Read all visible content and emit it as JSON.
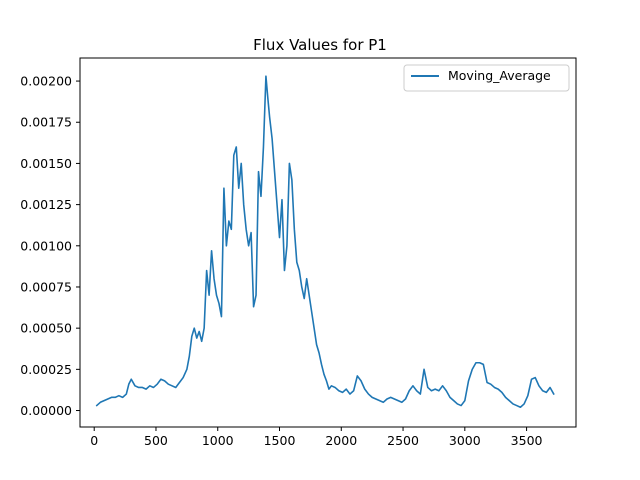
{
  "chart_data": {
    "type": "line",
    "title": "Flux Values for P1",
    "xlabel": "",
    "ylabel": "",
    "xlim": [
      -115,
      3900
    ],
    "ylim": [
      -0.0001,
      0.00214
    ],
    "xticks": [
      0,
      500,
      1000,
      1500,
      2000,
      2500,
      3000,
      3500
    ],
    "xtick_labels": [
      "0",
      "500",
      "1000",
      "1500",
      "2000",
      "2500",
      "3000",
      "3500"
    ],
    "yticks": [
      0.0,
      0.00025,
      0.0005,
      0.00075,
      0.001,
      0.00125,
      0.0015,
      0.00175,
      0.002
    ],
    "ytick_labels": [
      "0.00000",
      "0.00025",
      "0.00050",
      "0.00075",
      "0.00100",
      "0.00125",
      "0.00150",
      "0.00175",
      "0.00200"
    ],
    "grid": false,
    "legend_position": "top-right",
    "series": [
      {
        "name": "Moving_Average",
        "color": "#1f77b4",
        "x": [
          20,
          50,
          80,
          110,
          140,
          170,
          200,
          230,
          260,
          280,
          300,
          330,
          360,
          390,
          420,
          450,
          480,
          510,
          540,
          570,
          600,
          630,
          660,
          690,
          720,
          750,
          770,
          790,
          810,
          830,
          850,
          870,
          890,
          910,
          930,
          950,
          970,
          990,
          1010,
          1030,
          1050,
          1070,
          1090,
          1110,
          1130,
          1150,
          1170,
          1190,
          1210,
          1230,
          1250,
          1270,
          1290,
          1310,
          1330,
          1350,
          1370,
          1390,
          1405,
          1420,
          1440,
          1460,
          1480,
          1500,
          1520,
          1540,
          1560,
          1580,
          1600,
          1620,
          1640,
          1660,
          1680,
          1700,
          1720,
          1740,
          1760,
          1780,
          1800,
          1820,
          1840,
          1860,
          1880,
          1900,
          1920,
          1950,
          1980,
          2010,
          2040,
          2070,
          2100,
          2130,
          2160,
          2190,
          2220,
          2250,
          2280,
          2310,
          2340,
          2370,
          2400,
          2430,
          2460,
          2490,
          2520,
          2550,
          2580,
          2610,
          2640,
          2670,
          2700,
          2730,
          2760,
          2790,
          2820,
          2850,
          2880,
          2910,
          2940,
          2970,
          3000,
          3030,
          3060,
          3090,
          3120,
          3150,
          3180,
          3210,
          3240,
          3270,
          3300,
          3330,
          3360,
          3390,
          3420,
          3450,
          3480,
          3510,
          3540,
          3570,
          3600,
          3630,
          3660,
          3690,
          3720
        ],
        "values": [
          3e-05,
          5e-05,
          6e-05,
          7e-05,
          8e-05,
          8e-05,
          9e-05,
          8e-05,
          0.0001,
          0.00016,
          0.00019,
          0.00015,
          0.00014,
          0.00014,
          0.00013,
          0.00015,
          0.00014,
          0.00016,
          0.00019,
          0.00018,
          0.00016,
          0.00015,
          0.00014,
          0.00017,
          0.0002,
          0.00025,
          0.00033,
          0.00045,
          0.0005,
          0.00044,
          0.00048,
          0.00042,
          0.0005,
          0.00085,
          0.0007,
          0.00097,
          0.0008,
          0.0007,
          0.00065,
          0.00057,
          0.00135,
          0.001,
          0.00115,
          0.0011,
          0.00155,
          0.0016,
          0.00135,
          0.0015,
          0.00125,
          0.0011,
          0.001,
          0.00108,
          0.00063,
          0.0007,
          0.00145,
          0.0013,
          0.0016,
          0.00203,
          0.0019,
          0.00178,
          0.00165,
          0.00145,
          0.00125,
          0.00105,
          0.00128,
          0.00085,
          0.001,
          0.0015,
          0.0014,
          0.0011,
          0.0009,
          0.00085,
          0.00075,
          0.00068,
          0.0008,
          0.0007,
          0.0006,
          0.0005,
          0.0004,
          0.00035,
          0.00028,
          0.00022,
          0.00018,
          0.00013,
          0.00015,
          0.00014,
          0.00012,
          0.00011,
          0.00013,
          0.0001,
          0.00012,
          0.00021,
          0.00018,
          0.00013,
          0.0001,
          8e-05,
          7e-05,
          6e-05,
          5e-05,
          7e-05,
          8e-05,
          7e-05,
          6e-05,
          5e-05,
          7e-05,
          0.00012,
          0.00015,
          0.00012,
          0.0001,
          0.00025,
          0.00014,
          0.00012,
          0.00013,
          0.00012,
          0.00015,
          0.00012,
          8e-05,
          6e-05,
          4e-05,
          3e-05,
          6e-05,
          0.00018,
          0.00025,
          0.00029,
          0.00029,
          0.00028,
          0.00017,
          0.00016,
          0.00014,
          0.00013,
          0.00011,
          8e-05,
          6e-05,
          4e-05,
          3e-05,
          2e-05,
          4e-05,
          9e-05,
          0.00019,
          0.0002,
          0.00015,
          0.00012,
          0.00011,
          0.00014,
          0.0001
        ]
      }
    ]
  }
}
